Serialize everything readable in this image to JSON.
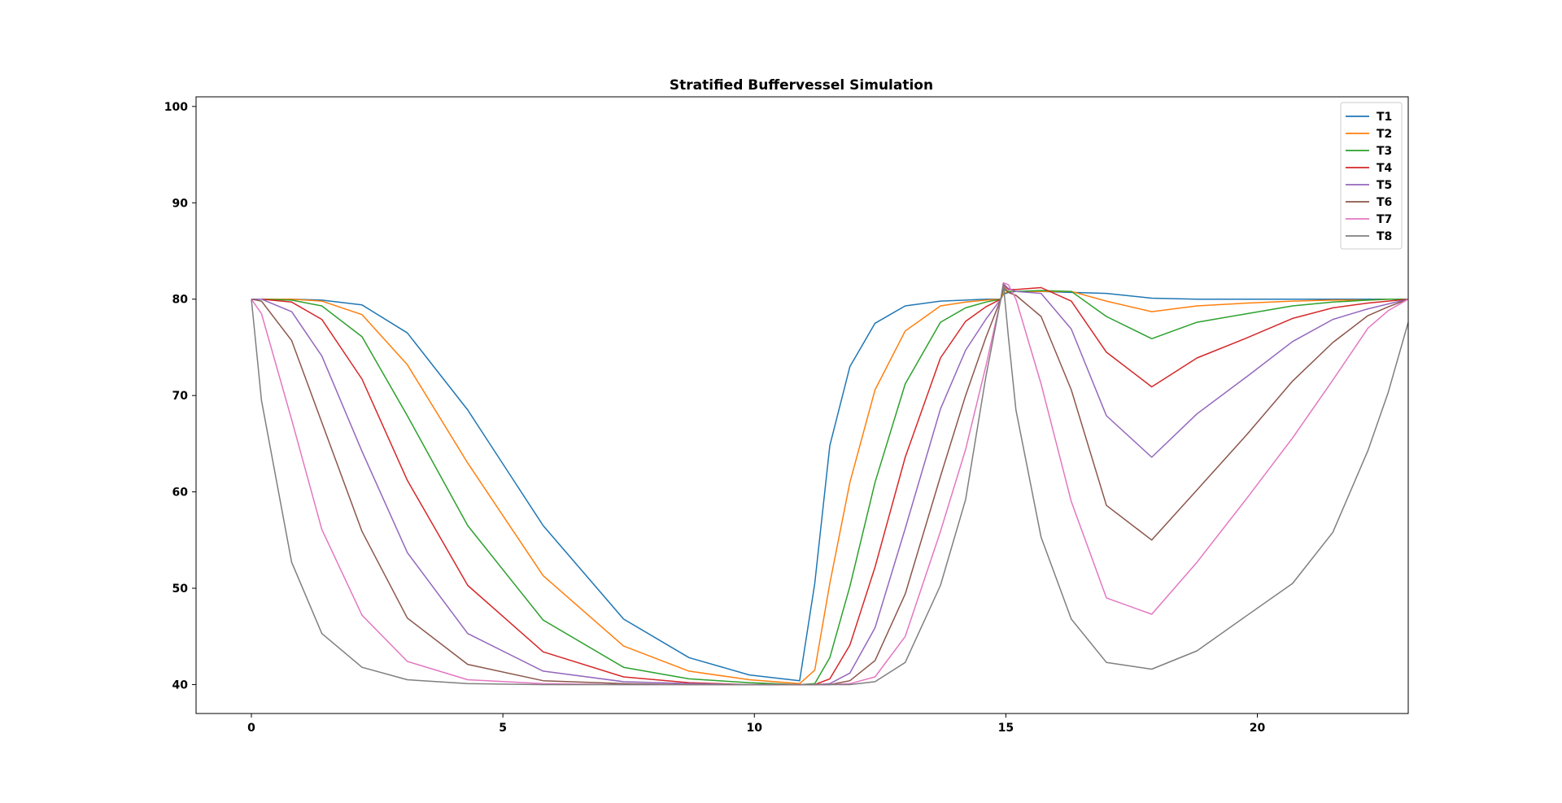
{
  "chart_data": {
    "type": "line",
    "title": "Stratified Buffervessel Simulation",
    "xlabel": "",
    "ylabel": "",
    "xlim": [
      -1.1,
      23
    ],
    "ylim": [
      37,
      101
    ],
    "xticks": [
      0,
      5,
      10,
      15,
      20
    ],
    "yticks": [
      40,
      50,
      60,
      70,
      80,
      90,
      100
    ],
    "legend_position": "top-right",
    "grid": false,
    "x": [
      0,
      0.2,
      0.8,
      1.4,
      2.2,
      3.1,
      4.3,
      5.8,
      7.4,
      8.7,
      9.9,
      10.9,
      11.2,
      11.5,
      11.9,
      12.4,
      13,
      13.7,
      14.2,
      14.6,
      14.9,
      14.95,
      15.05,
      15.2,
      15.7,
      16.3,
      17,
      17.9,
      18.8,
      19.8,
      20.7,
      21.5,
      22.2,
      22.6,
      23
    ],
    "series": [
      {
        "name": "T1",
        "color": "#1f77b4",
        "values": [
          80,
          80,
          80,
          79.9,
          79.4,
          76.5,
          68.5,
          56.5,
          46.8,
          42.8,
          41,
          40.4,
          50.5,
          64.8,
          73,
          77.5,
          79.3,
          79.8,
          79.9,
          80,
          80,
          80.5,
          80.7,
          80.8,
          80.8,
          80.7,
          80.6,
          80.1,
          80,
          80,
          80,
          80,
          80,
          80,
          80
        ]
      },
      {
        "name": "T2",
        "color": "#ff7f0e",
        "values": [
          80,
          80,
          80,
          79.8,
          78.4,
          73.2,
          63,
          51.3,
          44,
          41.4,
          40.5,
          40.1,
          41.5,
          50.5,
          61,
          70.6,
          76.7,
          79.3,
          79.7,
          79.9,
          80,
          80.6,
          80.8,
          80.8,
          80.8,
          80.8,
          79.8,
          78.7,
          79.3,
          79.6,
          79.8,
          79.9,
          79.9,
          80,
          80
        ]
      },
      {
        "name": "T3",
        "color": "#2ca02c",
        "values": [
          80,
          80,
          79.9,
          79.3,
          76.1,
          67.9,
          56.5,
          46.7,
          41.8,
          40.6,
          40.2,
          40,
          40.1,
          42.8,
          50.2,
          61,
          71.2,
          77.6,
          79.1,
          79.7,
          80,
          81,
          80.8,
          80.8,
          80.9,
          80.8,
          78.2,
          75.9,
          77.6,
          78.5,
          79.3,
          79.7,
          79.9,
          80,
          80
        ]
      },
      {
        "name": "T4",
        "color": "#d62728",
        "values": [
          80,
          80,
          79.7,
          77.9,
          71.7,
          61.2,
          50.3,
          43.4,
          40.8,
          40.2,
          40,
          40,
          40,
          40.6,
          44.1,
          52.2,
          63.6,
          73.9,
          77.7,
          79.2,
          80,
          81.5,
          81,
          81,
          81.2,
          79.8,
          74.5,
          70.9,
          73.9,
          76,
          78,
          79.1,
          79.6,
          79.8,
          80
        ]
      },
      {
        "name": "T5",
        "color": "#9467bd",
        "values": [
          80,
          80,
          78.7,
          74.1,
          64.2,
          53.7,
          45.3,
          41.4,
          40.3,
          40.1,
          40,
          40,
          40,
          40.1,
          41.2,
          45.9,
          56.2,
          68.6,
          74.7,
          77.9,
          80,
          81.6,
          81.1,
          80.8,
          80.6,
          76.9,
          67.9,
          63.6,
          68.1,
          72,
          75.6,
          77.9,
          79,
          79.5,
          80
        ]
      },
      {
        "name": "T6",
        "color": "#8c564b",
        "values": [
          80,
          79.8,
          75.7,
          67.2,
          55.9,
          46.9,
          42.1,
          40.4,
          40.1,
          40,
          40,
          40,
          40,
          40,
          40.4,
          42.5,
          49.4,
          61.6,
          70,
          76,
          80,
          81.3,
          80.7,
          80.4,
          78.2,
          70.6,
          58.6,
          55,
          60.2,
          66,
          71.5,
          75.5,
          78.3,
          79.2,
          80
        ]
      },
      {
        "name": "T7",
        "color": "#e377c2",
        "values": [
          80,
          78.5,
          67.5,
          56.1,
          47.2,
          42.4,
          40.5,
          40.1,
          40,
          40,
          40,
          40,
          40,
          40,
          40.1,
          40.8,
          45,
          55.9,
          64.4,
          73,
          80,
          81.7,
          81.5,
          80,
          71.2,
          59,
          49,
          47.3,
          52.7,
          59.4,
          65.6,
          71.6,
          77,
          78.8,
          80
        ]
      },
      {
        "name": "T8",
        "color": "#7f7f7f",
        "values": [
          80,
          69.5,
          52.7,
          45.3,
          41.8,
          40.5,
          40.1,
          40,
          40,
          40,
          40,
          40,
          40,
          40,
          40,
          40.3,
          42.3,
          50.3,
          59.2,
          71.9,
          80,
          81.6,
          76.1,
          68.5,
          55.3,
          46.8,
          42.3,
          41.6,
          43.5,
          47.2,
          50.5,
          55.8,
          64.3,
          70.3,
          77.6
        ]
      }
    ]
  }
}
